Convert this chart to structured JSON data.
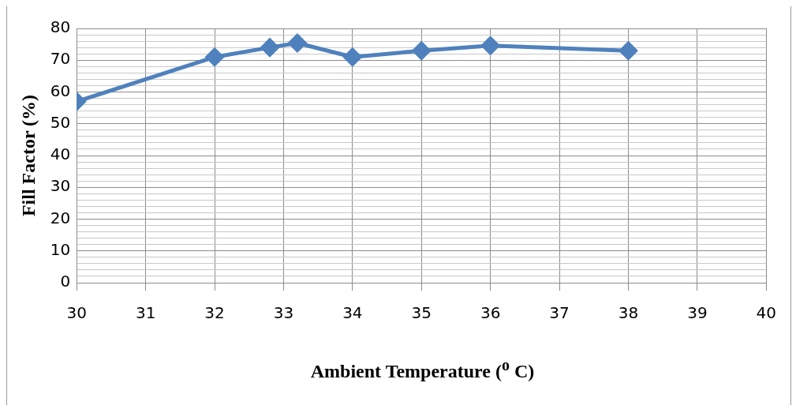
{
  "chart_data": {
    "type": "line",
    "xlabel": "Ambient Temperature ($^{o}$ C)",
    "ylabel": "Fill Factor (%)",
    "x": [
      30,
      32,
      32.8,
      33.2,
      34,
      35,
      36,
      38
    ],
    "series": [
      {
        "color": "#4f81bd",
        "values": [
          57,
          71,
          74,
          75.4,
          71,
          73,
          74.6,
          73
        ]
      }
    ],
    "xlim": [
      30,
      40
    ],
    "xticks": [
      30,
      31,
      32,
      33,
      34,
      35,
      36,
      37,
      38,
      39,
      40
    ],
    "ylim": [
      0,
      80
    ],
    "yticks": [
      0,
      {
        "value": 2,
        "label": null
      },
      {
        "value": 4,
        "label": null
      },
      {
        "value": 6,
        "label": null
      },
      {
        "value": 8,
        "label": null
      },
      10,
      {
        "value": 12,
        "label": null
      },
      {
        "value": 14,
        "label": null
      },
      {
        "value": 16,
        "label": null
      },
      {
        "value": 18,
        "label": null
      },
      20,
      {
        "value": 22,
        "label": null
      },
      {
        "value": 24,
        "label": null
      },
      {
        "value": 26,
        "label": null
      },
      {
        "value": 28,
        "label": null
      },
      30,
      {
        "value": 32,
        "label": null
      },
      {
        "value": 34,
        "label": null
      },
      {
        "value": 36,
        "label": null
      },
      {
        "value": 38,
        "label": null
      },
      40,
      {
        "value": 42,
        "label": null
      },
      {
        "value": 44,
        "label": null
      },
      {
        "value": 46,
        "label": null
      },
      {
        "value": 48,
        "label": null
      },
      50,
      {
        "value": 52,
        "label": null
      },
      {
        "value": 54,
        "label": null
      },
      {
        "value": 56,
        "label": null
      },
      {
        "value": 58,
        "label": null
      },
      60,
      {
        "value": 62,
        "label": null
      },
      {
        "value": 64,
        "label": null
      },
      {
        "value": 66,
        "label": null
      },
      {
        "value": 68,
        "label": null
      },
      70,
      {
        "value": 72,
        "label": null
      },
      {
        "value": 74,
        "label": null
      },
      {
        "value": 76,
        "label": null
      },
      {
        "value": 78,
        "label": null
      },
      80
    ],
    "grid": true,
    "legend": false,
    "marker": "diamond",
    "line_style": "solid"
  }
}
